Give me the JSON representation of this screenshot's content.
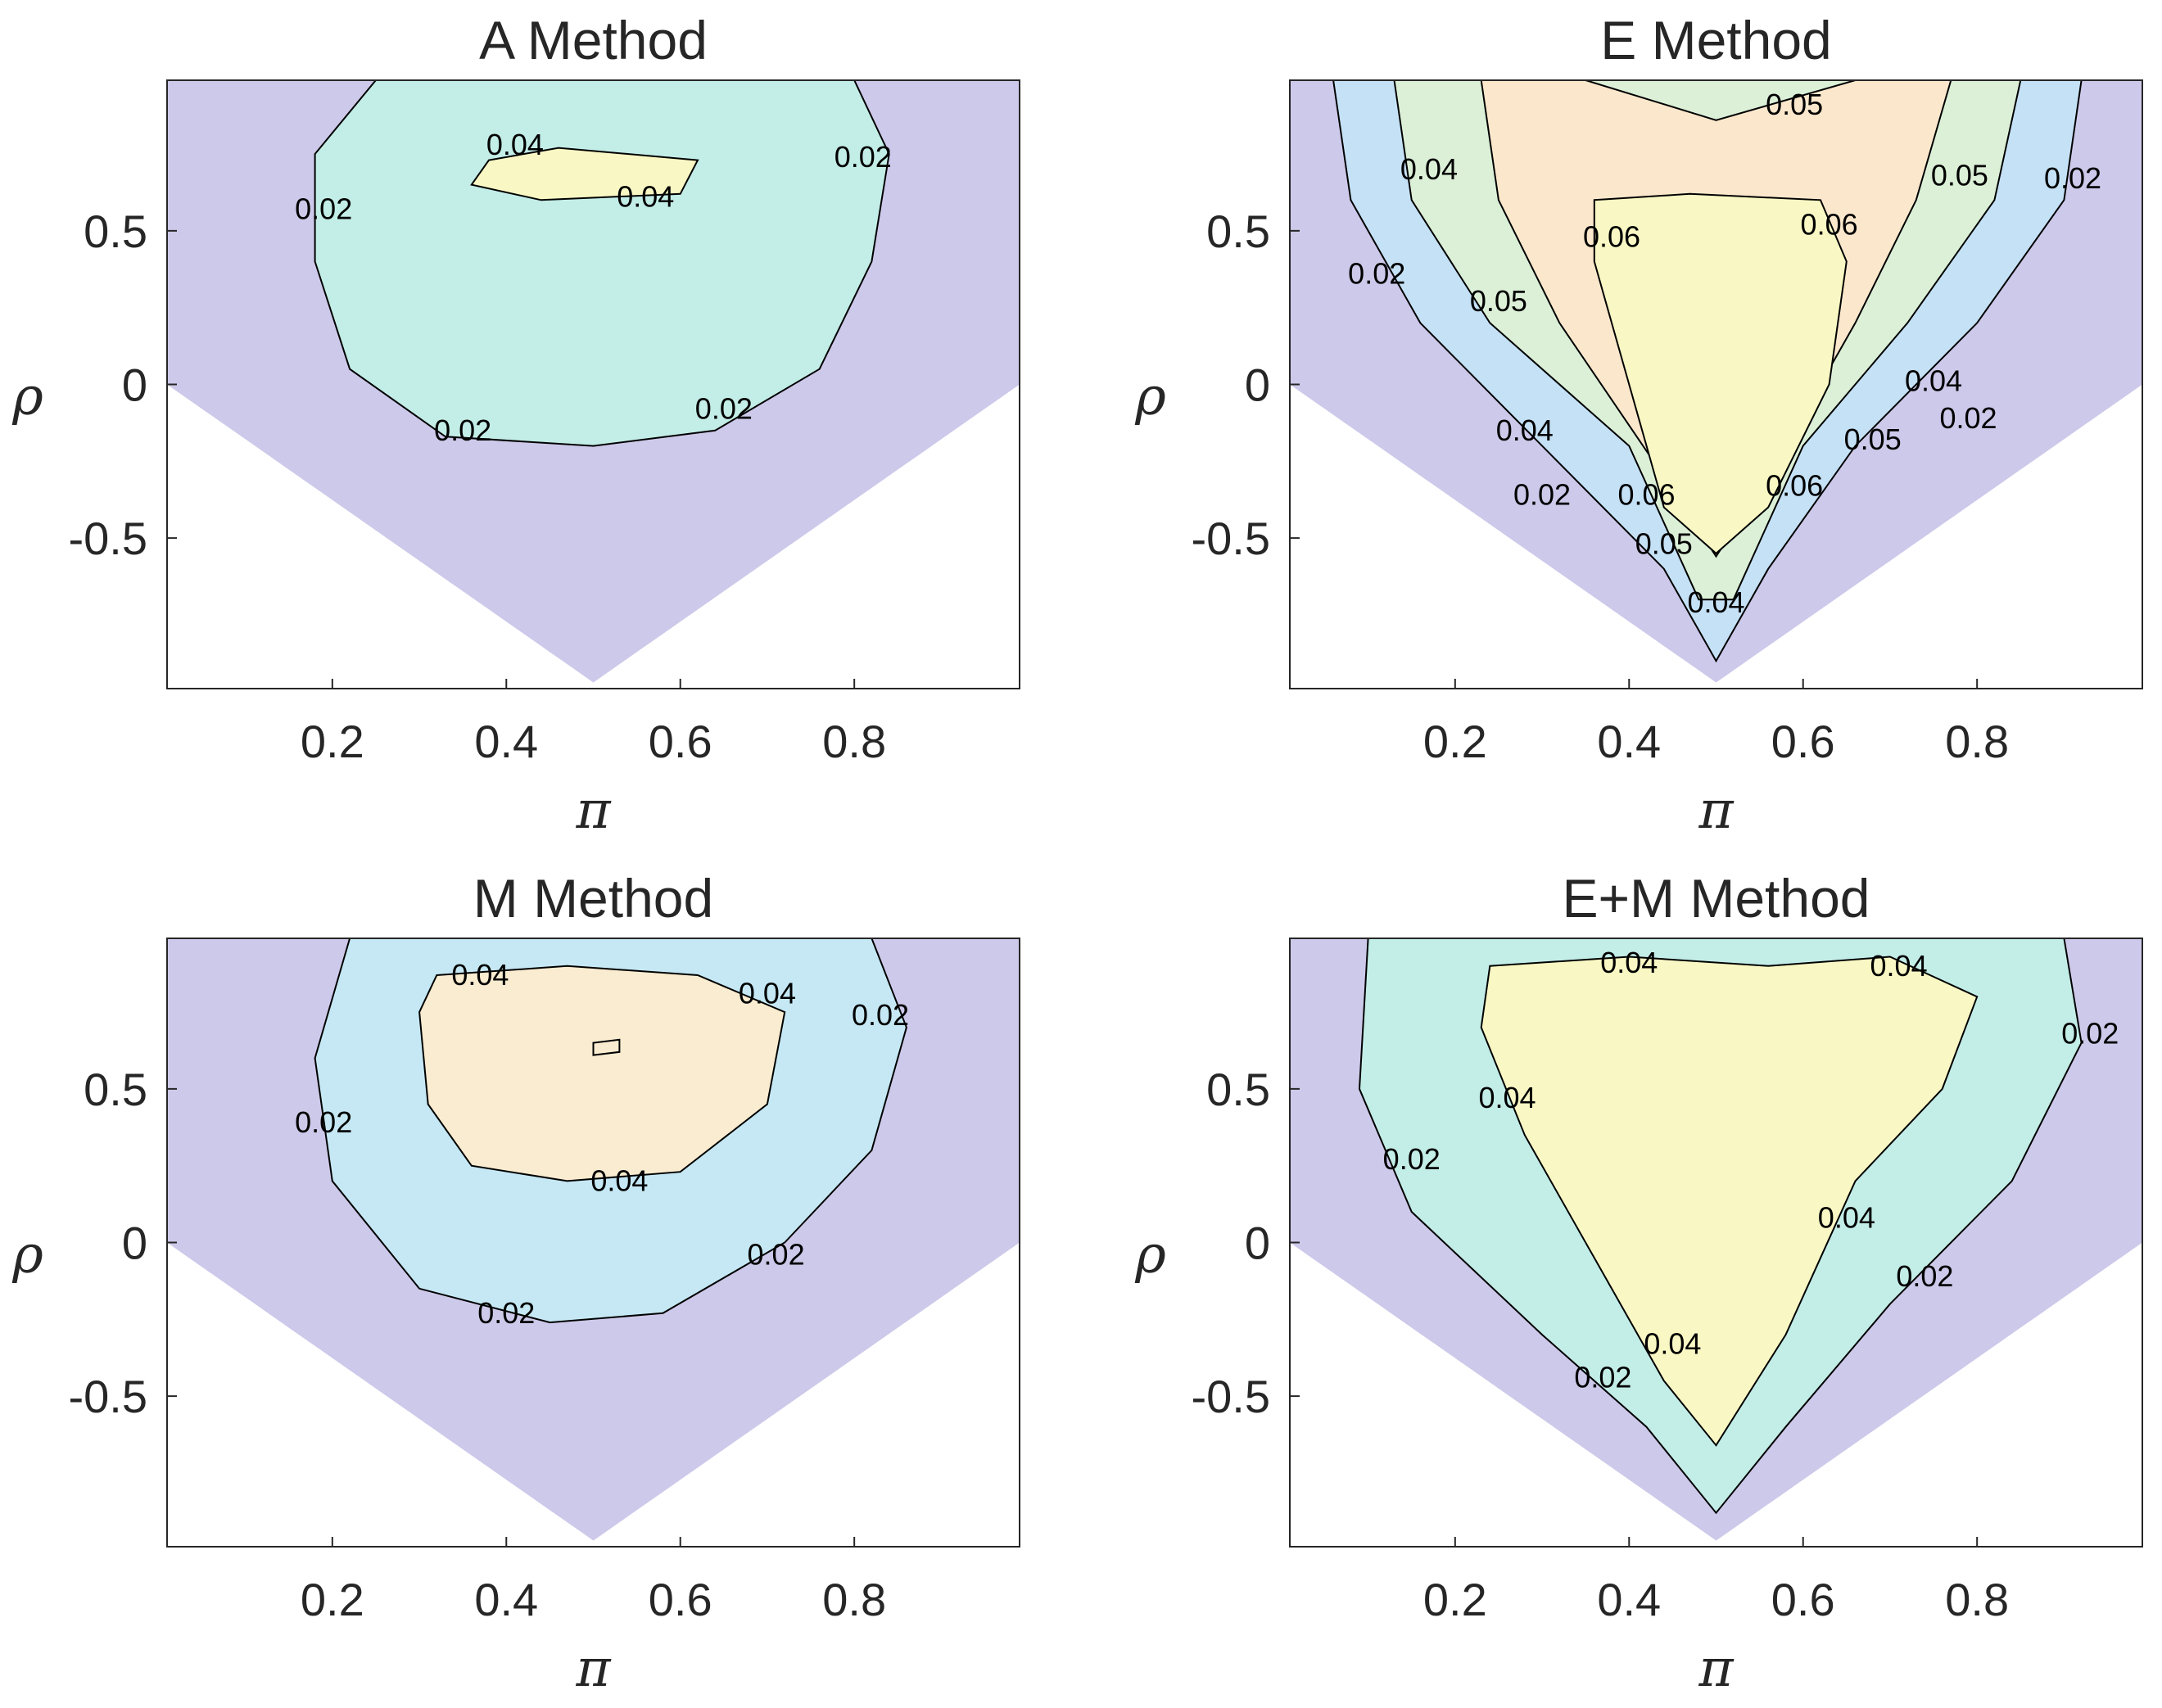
{
  "chart_data": [
    {
      "type": "contour",
      "title": "A Method",
      "xlabel": "π",
      "ylabel": "ρ",
      "xlim": [
        0.01,
        0.99
      ],
      "ylim": [
        -0.99,
        0.99
      ],
      "xticks": [
        "0.2",
        "0.4",
        "0.6",
        "0.8"
      ],
      "yticks": [
        "0.5",
        "0",
        "-0.5"
      ],
      "fill_colors": [
        "#cdc9ea",
        "#c3ede7",
        "#f9f8c4"
      ],
      "contour_levels": [
        "0.02",
        "0.04"
      ],
      "contour_labels": [
        {
          "level": "0.04",
          "x": 0.41,
          "y": 0.78
        },
        {
          "level": "0.04",
          "x": 0.56,
          "y": 0.61
        },
        {
          "level": "0.02",
          "x": 0.19,
          "y": 0.57
        },
        {
          "level": "0.02",
          "x": 0.81,
          "y": 0.74
        },
        {
          "level": "0.02",
          "x": 0.35,
          "y": -0.15
        },
        {
          "level": "0.02",
          "x": 0.65,
          "y": -0.08
        }
      ]
    },
    {
      "type": "contour",
      "title": "E Method",
      "xlabel": "π",
      "ylabel": "ρ",
      "xlim": [
        0.01,
        0.99
      ],
      "ylim": [
        -0.99,
        0.99
      ],
      "xticks": [
        "0.2",
        "0.4",
        "0.6",
        "0.8"
      ],
      "yticks": [
        "0.5",
        "0",
        "-0.5"
      ],
      "fill_colors": [
        "#cdc9ea",
        "#c5e1f6",
        "#dbf0d7",
        "#fbe8cc",
        "#f9f8c4"
      ],
      "contour_levels": [
        "0.02",
        "0.04",
        "0.05",
        "0.06"
      ],
      "contour_labels": [
        {
          "level": "0.05",
          "x": 0.59,
          "y": 0.91
        },
        {
          "level": "0.04",
          "x": 0.17,
          "y": 0.7
        },
        {
          "level": "0.02",
          "x": 0.11,
          "y": 0.36
        },
        {
          "level": "0.06",
          "x": 0.38,
          "y": 0.48
        },
        {
          "level": "0.06",
          "x": 0.63,
          "y": 0.52
        },
        {
          "level": "0.05",
          "x": 0.25,
          "y": 0.27
        },
        {
          "level": "0.05",
          "x": 0.78,
          "y": 0.68
        },
        {
          "level": "0.02",
          "x": 0.91,
          "y": 0.67
        },
        {
          "level": "0.04",
          "x": 0.28,
          "y": -0.15
        },
        {
          "level": "0.02",
          "x": 0.3,
          "y": -0.36
        },
        {
          "level": "0.06",
          "x": 0.42,
          "y": -0.36
        },
        {
          "level": "0.05",
          "x": 0.44,
          "y": -0.52
        },
        {
          "level": "0.06",
          "x": 0.59,
          "y": -0.33
        },
        {
          "level": "0.05",
          "x": 0.68,
          "y": -0.18
        },
        {
          "level": "0.04",
          "x": 0.75,
          "y": 0.01
        },
        {
          "level": "0.02",
          "x": 0.79,
          "y": -0.11
        },
        {
          "level": "0.04",
          "x": 0.5,
          "y": -0.71
        }
      ]
    },
    {
      "type": "contour",
      "title": "M Method",
      "xlabel": "π",
      "ylabel": "ρ",
      "xlim": [
        0.01,
        0.99
      ],
      "ylim": [
        -0.99,
        0.99
      ],
      "xticks": [
        "0.2",
        "0.4",
        "0.6",
        "0.8"
      ],
      "yticks": [
        "0.5",
        "0",
        "-0.5"
      ],
      "fill_colors": [
        "#cdc9ea",
        "#c5e8f4",
        "#f9ecd0"
      ],
      "contour_levels": [
        "0.02",
        "0.04"
      ],
      "contour_labels": [
        {
          "level": "0.04",
          "x": 0.37,
          "y": 0.87
        },
        {
          "level": "0.04",
          "x": 0.7,
          "y": 0.81
        },
        {
          "level": "0.02",
          "x": 0.83,
          "y": 0.74
        },
        {
          "level": "0.02",
          "x": 0.19,
          "y": 0.39
        },
        {
          "level": "0.04",
          "x": 0.53,
          "y": 0.2
        },
        {
          "level": "0.02",
          "x": 0.71,
          "y": -0.04
        },
        {
          "level": "0.02",
          "x": 0.4,
          "y": -0.23
        }
      ]
    },
    {
      "type": "contour",
      "title": "E+M Method",
      "xlabel": "π",
      "ylabel": "ρ",
      "xlim": [
        0.01,
        0.99
      ],
      "ylim": [
        -0.99,
        0.99
      ],
      "xticks": [
        "0.2",
        "0.4",
        "0.6",
        "0.8"
      ],
      "yticks": [
        "0.5",
        "0",
        "-0.5"
      ],
      "fill_colors": [
        "#cdc9ea",
        "#c3ede7",
        "#f9f8c4"
      ],
      "contour_levels": [
        "0.02",
        "0.04"
      ],
      "contour_labels": [
        {
          "level": "0.04",
          "x": 0.4,
          "y": 0.91
        },
        {
          "level": "0.04",
          "x": 0.71,
          "y": 0.9
        },
        {
          "level": "0.02",
          "x": 0.93,
          "y": 0.68
        },
        {
          "level": "0.04",
          "x": 0.26,
          "y": 0.47
        },
        {
          "level": "0.02",
          "x": 0.15,
          "y": 0.27
        },
        {
          "level": "0.04",
          "x": 0.65,
          "y": 0.08
        },
        {
          "level": "0.02",
          "x": 0.74,
          "y": -0.11
        },
        {
          "level": "0.04",
          "x": 0.45,
          "y": -0.33
        },
        {
          "level": "0.02",
          "x": 0.37,
          "y": -0.44
        }
      ]
    }
  ]
}
